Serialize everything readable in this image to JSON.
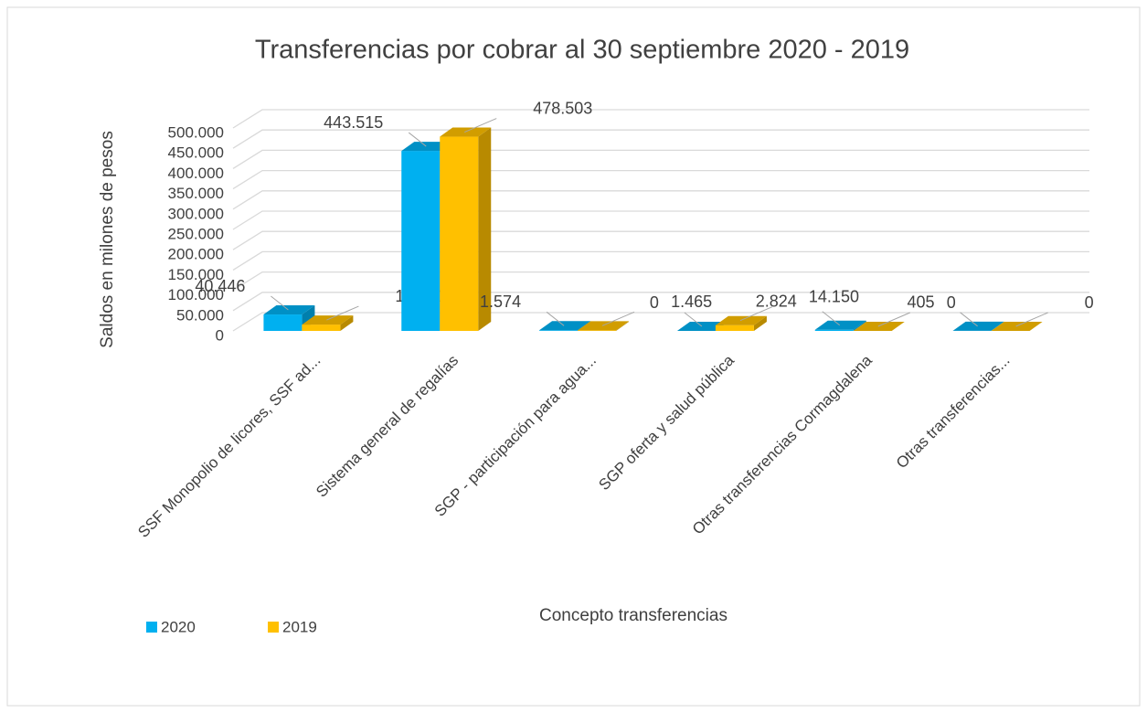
{
  "chart_data": {
    "type": "bar3d",
    "title": "Transferencias por cobrar al 30 septiembre 2020 - 2019",
    "y_label": "Saldos en milones de pesos",
    "x_label": "Concepto transferencias",
    "categories": [
      "SSF Monopolio de licores, SSF ad...",
      "Sistema general de regalías",
      "SGP - participación para agua...",
      "SGP oferta y salud pública",
      "Otras transferencias Cormagdalena",
      "Otras transferencias..."
    ],
    "series": [
      {
        "name": "2020",
        "color": "#00b0f0",
        "values": [
          40446,
          443515,
          1574,
          0,
          2824,
          405
        ],
        "value_labels": [
          "40.446",
          "443.515",
          "1.574",
          "0",
          "2.824",
          "405"
        ]
      },
      {
        "name": "2019",
        "color": "#ffc000",
        "values": [
          15601,
          478503,
          1465,
          14150,
          0,
          0
        ],
        "value_labels": [
          "15.601",
          "478.503",
          "1.465",
          "14.150",
          "0",
          "0"
        ]
      }
    ],
    "ylim": [
      0,
      500000
    ],
    "yticks": [
      0,
      {
        "value": 50000,
        "label": "50.000"
      },
      {
        "value": 100000,
        "label": "100.000"
      },
      {
        "value": 150000,
        "label": "150.000"
      },
      {
        "value": 200000,
        "label": "200.000"
      },
      {
        "value": 250000,
        "label": "250.000"
      },
      {
        "value": 300000,
        "label": "300.000"
      },
      {
        "value": 350000,
        "label": "350.000"
      },
      {
        "value": 400000,
        "label": "400.000"
      },
      {
        "value": 450000,
        "label": "450.000"
      },
      {
        "value": 500000,
        "label": "500.000"
      }
    ],
    "grid": true,
    "legend": "bottom-left"
  }
}
